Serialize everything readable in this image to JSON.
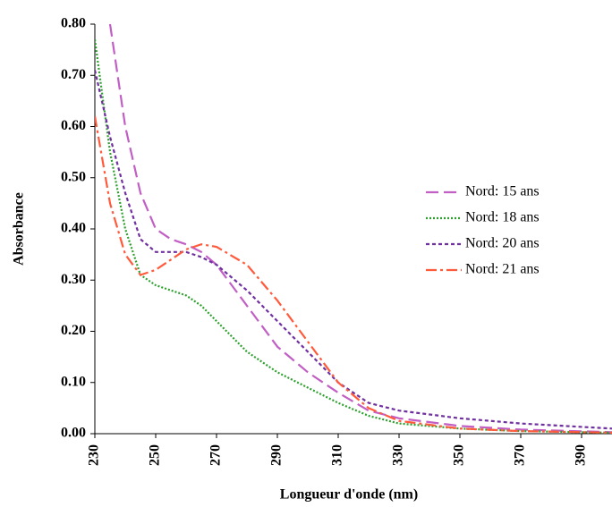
{
  "chart_data": {
    "type": "line",
    "xlabel": "Longueur d'onde (nm)",
    "ylabel": "Absorbance",
    "x": [
      230,
      235,
      240,
      245,
      250,
      255,
      260,
      265,
      270,
      280,
      290,
      300,
      310,
      320,
      330,
      350,
      370,
      400
    ],
    "series": [
      {
        "name": "Nord: 15 ans",
        "color": "#c15fc4",
        "values": [
          null,
          0.8,
          0.6,
          0.47,
          0.4,
          0.38,
          0.37,
          0.355,
          0.33,
          0.25,
          0.17,
          0.12,
          0.08,
          0.045,
          0.03,
          0.015,
          0.008,
          0.003
        ]
      },
      {
        "name": "Nord: 18 ans",
        "color": "#2ca02c",
        "values": [
          0.77,
          0.55,
          0.4,
          0.31,
          0.29,
          0.28,
          0.27,
          0.25,
          0.22,
          0.16,
          0.12,
          0.09,
          0.06,
          0.035,
          0.02,
          0.01,
          0.005,
          0.002
        ]
      },
      {
        "name": "Nord: 20 ans",
        "color": "#7030a0",
        "values": [
          0.71,
          0.58,
          0.47,
          0.38,
          0.355,
          0.355,
          0.355,
          0.345,
          0.33,
          0.28,
          0.22,
          0.16,
          0.1,
          0.06,
          0.045,
          0.03,
          0.02,
          0.01
        ]
      },
      {
        "name": "Nord: 21 ans",
        "color": "#ff5a3c",
        "values": [
          0.62,
          0.45,
          0.35,
          0.31,
          0.32,
          0.34,
          0.36,
          0.37,
          0.365,
          0.33,
          0.26,
          0.18,
          0.1,
          0.05,
          0.025,
          0.01,
          0.005,
          0.002
        ]
      }
    ],
    "xlim": [
      230,
      400
    ],
    "xticks": [
      230,
      250,
      270,
      290,
      310,
      330,
      350,
      370,
      390
    ],
    "ylim": [
      0,
      0.8
    ],
    "yticks": [
      {
        "value": 0,
        "label": "0.00"
      },
      {
        "value": 0.1,
        "label": "0.10"
      },
      {
        "value": 0.2,
        "label": "0.20"
      },
      {
        "value": 0.3,
        "label": "0.30"
      },
      {
        "value": 0.4,
        "label": "0.40"
      },
      {
        "value": 0.5,
        "label": "0.50"
      },
      {
        "value": 0.6,
        "label": "0.60"
      },
      {
        "value": 0.7,
        "label": "0.70"
      },
      {
        "value": 0.8,
        "label": "0.80"
      }
    ],
    "legend": "right"
  }
}
